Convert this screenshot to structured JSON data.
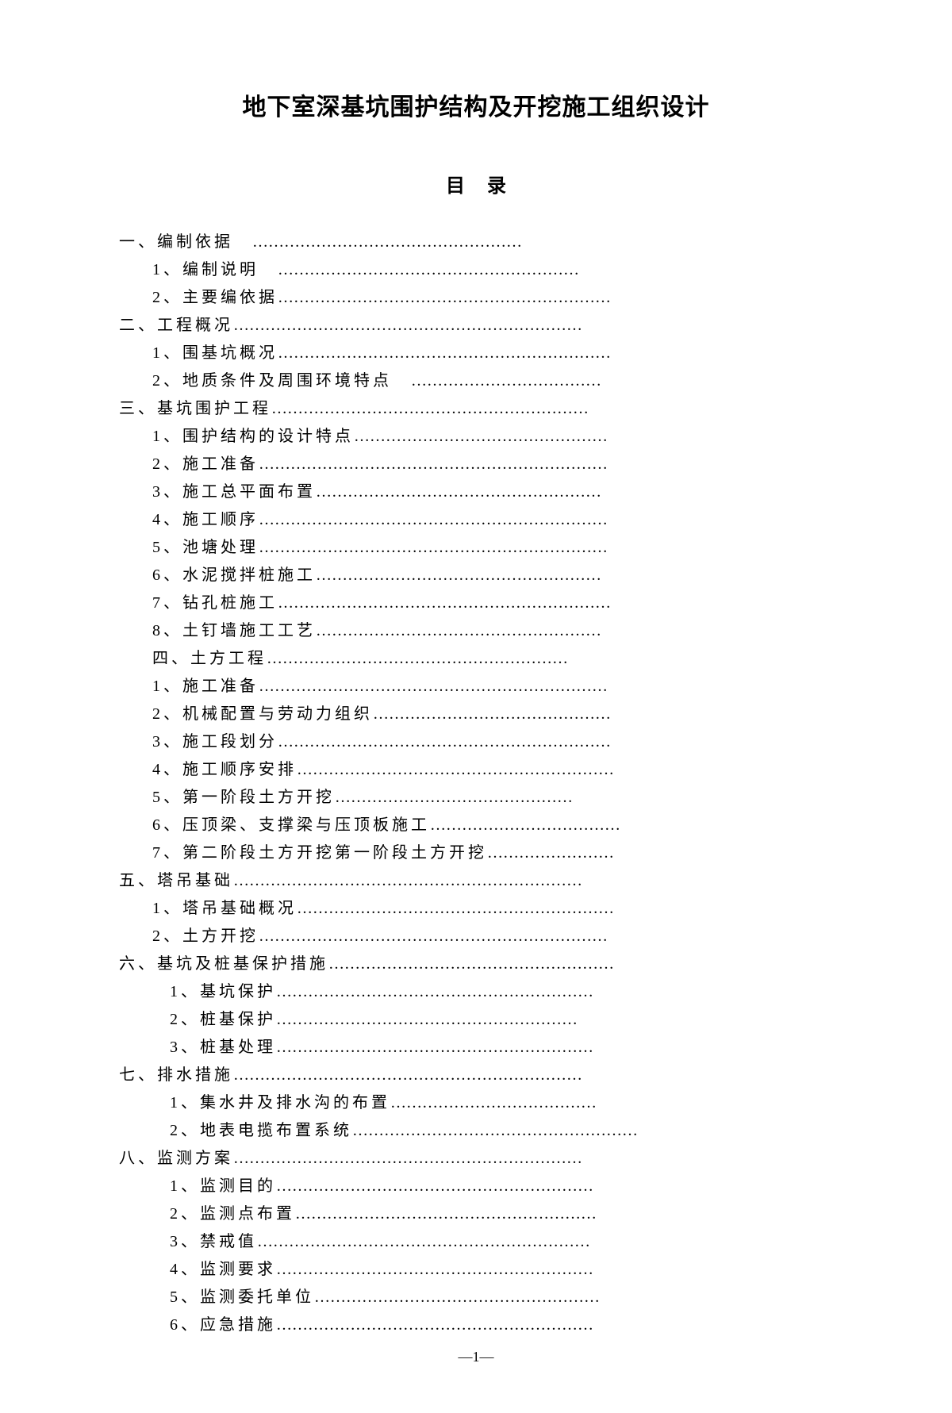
{
  "title": "地下室深基坑围护结构及开挖施工组织设计",
  "toc_header": "目录",
  "toc": [
    {
      "level": "level-0",
      "label": "一、编制依据　",
      "dots": "……………………………………………"
    },
    {
      "level": "level-1",
      "label": "1、编制说明　",
      "dots": "…………………………………………………"
    },
    {
      "level": "level-1",
      "label": "2、主要编依据",
      "dots": "………………………………………………………"
    },
    {
      "level": "level-0",
      "label": "二、工程概况",
      "dots": "…………………………………………………………"
    },
    {
      "level": "level-1",
      "label": "1、围基坑概况",
      "dots": "………………………………………………………"
    },
    {
      "level": "level-1",
      "label": "2、地质条件及周围环境特点　",
      "dots": "………………………………"
    },
    {
      "level": "level-0",
      "label": "三、基坑围护工程",
      "dots": "……………………………………………………"
    },
    {
      "level": "level-1",
      "label": "1、围护结构的设计特点",
      "dots": "…………………………………………"
    },
    {
      "level": "level-1",
      "label": "2、施工准备",
      "dots": "…………………………………………………………"
    },
    {
      "level": "level-1",
      "label": "3、施工总平面布置",
      "dots": "………………………………………………"
    },
    {
      "level": "level-1",
      "label": "4、施工顺序",
      "dots": "…………………………………………………………"
    },
    {
      "level": "level-1",
      "label": "5、池塘处理",
      "dots": "…………………………………………………………"
    },
    {
      "level": "level-1",
      "label": "6、水泥搅拌桩施工",
      "dots": "………………………………………………"
    },
    {
      "level": "level-1",
      "label": "7、钻孔桩施工",
      "dots": "………………………………………………………"
    },
    {
      "level": "level-1",
      "label": "8、土钉墙施工工艺",
      "dots": "………………………………………………"
    },
    {
      "level": "level-1",
      "label": "四、土方工程",
      "dots": "…………………………………………………"
    },
    {
      "level": "level-1",
      "label": "1、施工准备",
      "dots": "…………………………………………………………"
    },
    {
      "level": "level-1",
      "label": "2、机械配置与劳动力组织",
      "dots": "………………………………………"
    },
    {
      "level": "level-1",
      "label": "3、施工段划分",
      "dots": "………………………………………………………"
    },
    {
      "level": "level-1",
      "label": "4、施工顺序安排",
      "dots": "……………………………………………………"
    },
    {
      "level": "level-1",
      "label": "5、第一阶段土方开挖",
      "dots": "………………………………………"
    },
    {
      "level": "level-1",
      "label": "6、压顶梁、支撑梁与压顶板施工",
      "dots": "………………………………"
    },
    {
      "level": "level-1",
      "label": "7、第二阶段土方开挖第一阶段土方开挖",
      "dots": "……………………"
    },
    {
      "level": "level-0",
      "label": "五、塔吊基础",
      "dots": "…………………………………………………………"
    },
    {
      "level": "level-1",
      "label": "1、塔吊基础概况",
      "dots": "……………………………………………………"
    },
    {
      "level": "level-1",
      "label": "2、土方开挖",
      "dots": "…………………………………………………………"
    },
    {
      "level": "level-0",
      "label": "六、基坑及桩基保护措施",
      "dots": "………………………………………………"
    },
    {
      "level": "level-1b",
      "label": "1、基坑保护",
      "dots": "……………………………………………………"
    },
    {
      "level": "level-1b",
      "label": "2、桩基保护",
      "dots": "…………………………………………………"
    },
    {
      "level": "level-1b",
      "label": "3、桩基处理",
      "dots": "……………………………………………………"
    },
    {
      "level": "level-0",
      "label": "七、排水措施",
      "dots": "…………………………………………………………"
    },
    {
      "level": "level-1b",
      "label": "1、集水井及排水沟的布置",
      "dots": "…………………………………"
    },
    {
      "level": "level-1b",
      "label": "2、地表电揽布置系统",
      "dots": "………………………………………………"
    },
    {
      "level": "level-0",
      "label": "八、监测方案",
      "dots": "…………………………………………………………"
    },
    {
      "level": "level-1b",
      "label": "1、监测目的",
      "dots": "……………………………………………………"
    },
    {
      "level": "level-1b",
      "label": "2、监测点布置",
      "dots": "…………………………………………………"
    },
    {
      "level": "level-1b",
      "label": "3、禁戒值",
      "dots": "………………………………………………………"
    },
    {
      "level": "level-1b",
      "label": "4、监测要求",
      "dots": "……………………………………………………"
    },
    {
      "level": "level-1b",
      "label": "5、监测委托单位",
      "dots": "………………………………………………"
    },
    {
      "level": "level-1b",
      "label": "6、应急措施",
      "dots": "……………………………………………………"
    }
  ],
  "page_number": "—1—"
}
